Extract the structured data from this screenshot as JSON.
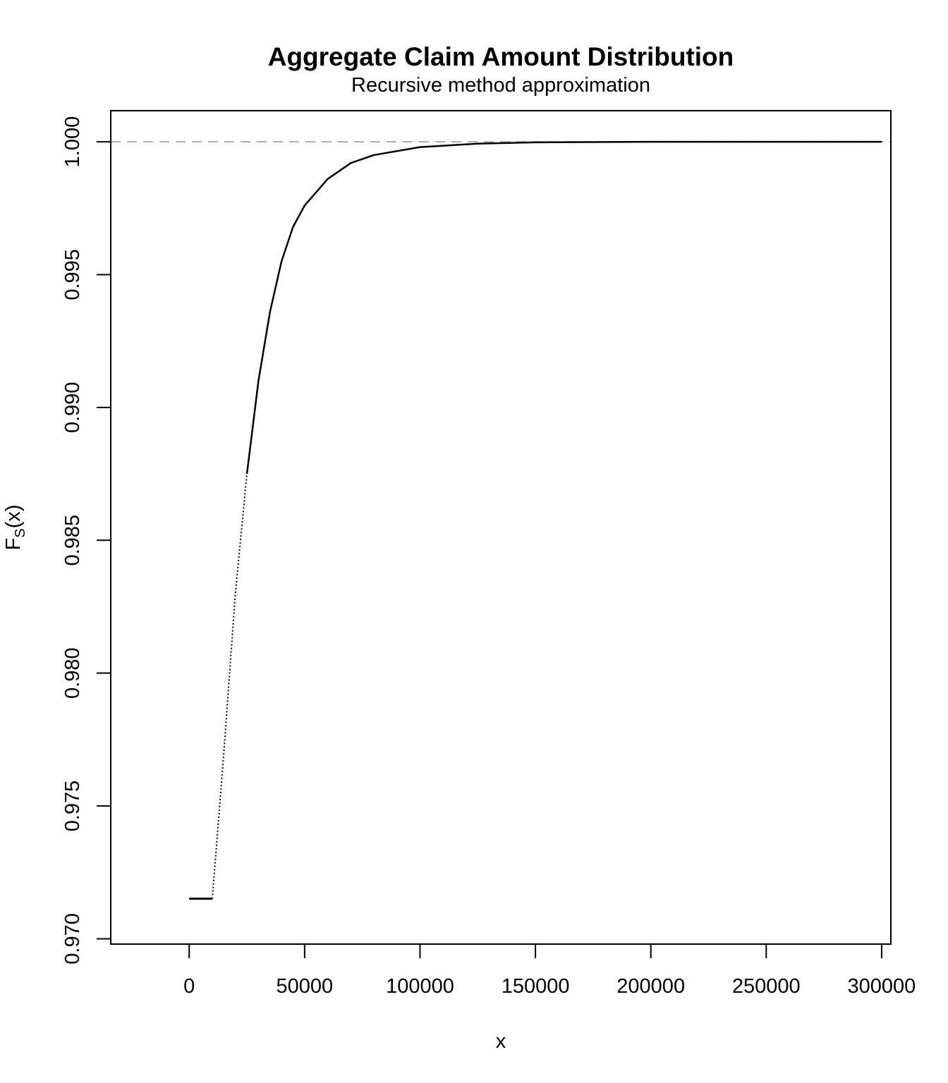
{
  "chart_data": {
    "type": "line",
    "title": "Aggregate Claim Amount Distribution",
    "subtitle": "Recursive method approximation",
    "xlabel": "x",
    "ylabel": {
      "main": "F",
      "subscript": "S",
      "suffix": "(x)"
    },
    "xlim": [
      -34000,
      304000
    ],
    "ylim": [
      0.9698,
      1.00117
    ],
    "x_ticks": [
      0,
      50000,
      100000,
      150000,
      200000,
      250000,
      300000
    ],
    "x_tick_labels": [
      "0",
      "50000",
      "100000",
      "150000",
      "200000",
      "250000",
      "300000"
    ],
    "y_ticks": [
      0.97,
      0.975,
      0.98,
      0.985,
      0.99,
      0.995,
      1.0
    ],
    "y_tick_labels": [
      "0.970",
      "0.975",
      "0.980",
      "0.985",
      "0.990",
      "0.995",
      "1.000"
    ],
    "grid": false,
    "legend": "none",
    "reference_line": {
      "y": 1.0,
      "style": "dashed",
      "color": "#aaaaaa"
    },
    "series": [
      {
        "style": "step-then-curve",
        "color": "#000000",
        "points": [
          [
            0,
            0.97151
          ],
          [
            10000,
            0.97151
          ],
          [
            15000,
            0.977
          ],
          [
            20000,
            0.983
          ],
          [
            25000,
            0.9875
          ],
          [
            30000,
            0.991
          ],
          [
            35000,
            0.9936
          ],
          [
            40000,
            0.9955
          ],
          [
            45000,
            0.9968
          ],
          [
            50000,
            0.9976
          ],
          [
            60000,
            0.9986
          ],
          [
            70000,
            0.9992
          ],
          [
            80000,
            0.9995
          ],
          [
            100000,
            0.9998
          ],
          [
            125000,
            0.99993
          ],
          [
            150000,
            0.99998
          ],
          [
            200000,
            1.0
          ],
          [
            300000,
            1.0
          ]
        ]
      }
    ]
  }
}
